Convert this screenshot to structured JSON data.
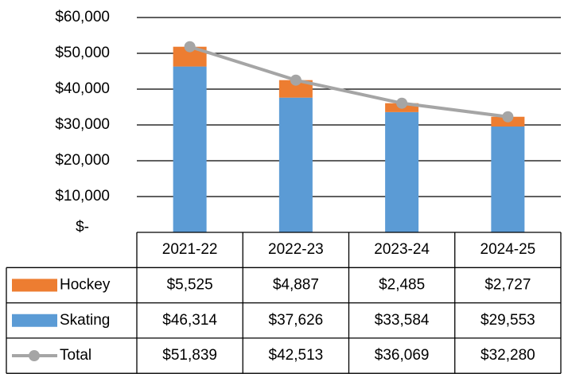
{
  "chart_data": {
    "type": "bar",
    "stacked": true,
    "categories": [
      "2021-22",
      "2022-23",
      "2023-24",
      "2024-25"
    ],
    "series": [
      {
        "name": "Hockey",
        "type": "bar",
        "color": "#ed7d31",
        "values": [
          5525,
          4887,
          2485,
          2727
        ],
        "value_labels": [
          "$5,525",
          "$4,887",
          "$2,485",
          "$2,727"
        ]
      },
      {
        "name": "Skating",
        "type": "bar",
        "color": "#5b9bd5",
        "values": [
          46314,
          37626,
          33584,
          29553
        ],
        "value_labels": [
          "$46,314",
          "$37,626",
          "$33,584",
          "$29,553"
        ]
      },
      {
        "name": "Total",
        "type": "line",
        "color": "#a5a5a5",
        "values": [
          51839,
          42513,
          36069,
          32280
        ],
        "value_labels": [
          "$51,839",
          "$42,513",
          "$36,069",
          "$32,280"
        ]
      }
    ],
    "ylim": [
      0,
      60000
    ],
    "yticks": [
      {
        "value": 0,
        "label": "$-"
      },
      {
        "value": 10000,
        "label": "$10,000"
      },
      {
        "value": 20000,
        "label": "$20,000"
      },
      {
        "value": 30000,
        "label": "$30,000"
      },
      {
        "value": 40000,
        "label": "$40,000"
      },
      {
        "value": 50000,
        "label": "$50,000"
      },
      {
        "value": 60000,
        "label": "$60,000"
      }
    ],
    "grid": true,
    "data_table": true
  }
}
